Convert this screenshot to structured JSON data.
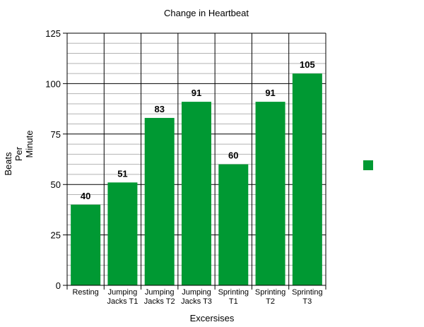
{
  "chart_data": {
    "type": "bar",
    "title": "Change in Heartbeat",
    "xlabel": "Excersises",
    "ylabel_lines": [
      "Beats",
      "Per",
      "Minute"
    ],
    "categories": [
      [
        "Resting"
      ],
      [
        "Jumping",
        "Jacks T1"
      ],
      [
        "Jumping",
        "Jacks T2"
      ],
      [
        "Jumping",
        "Jacks T3"
      ],
      [
        "Sprinting",
        "T1"
      ],
      [
        "Sprinting",
        "T2"
      ],
      [
        "Sprinting",
        "T3"
      ]
    ],
    "values": [
      40,
      51,
      83,
      91,
      60,
      91,
      105
    ],
    "ylim": [
      0,
      125
    ],
    "yticks": [
      0,
      25,
      50,
      75,
      100,
      125
    ],
    "minor_grid_step": 5,
    "grid": true,
    "legend_position": "right",
    "colors": {
      "bar": "#009933",
      "major_grid": "#000000",
      "minor_grid": "#b3b3b3"
    }
  }
}
